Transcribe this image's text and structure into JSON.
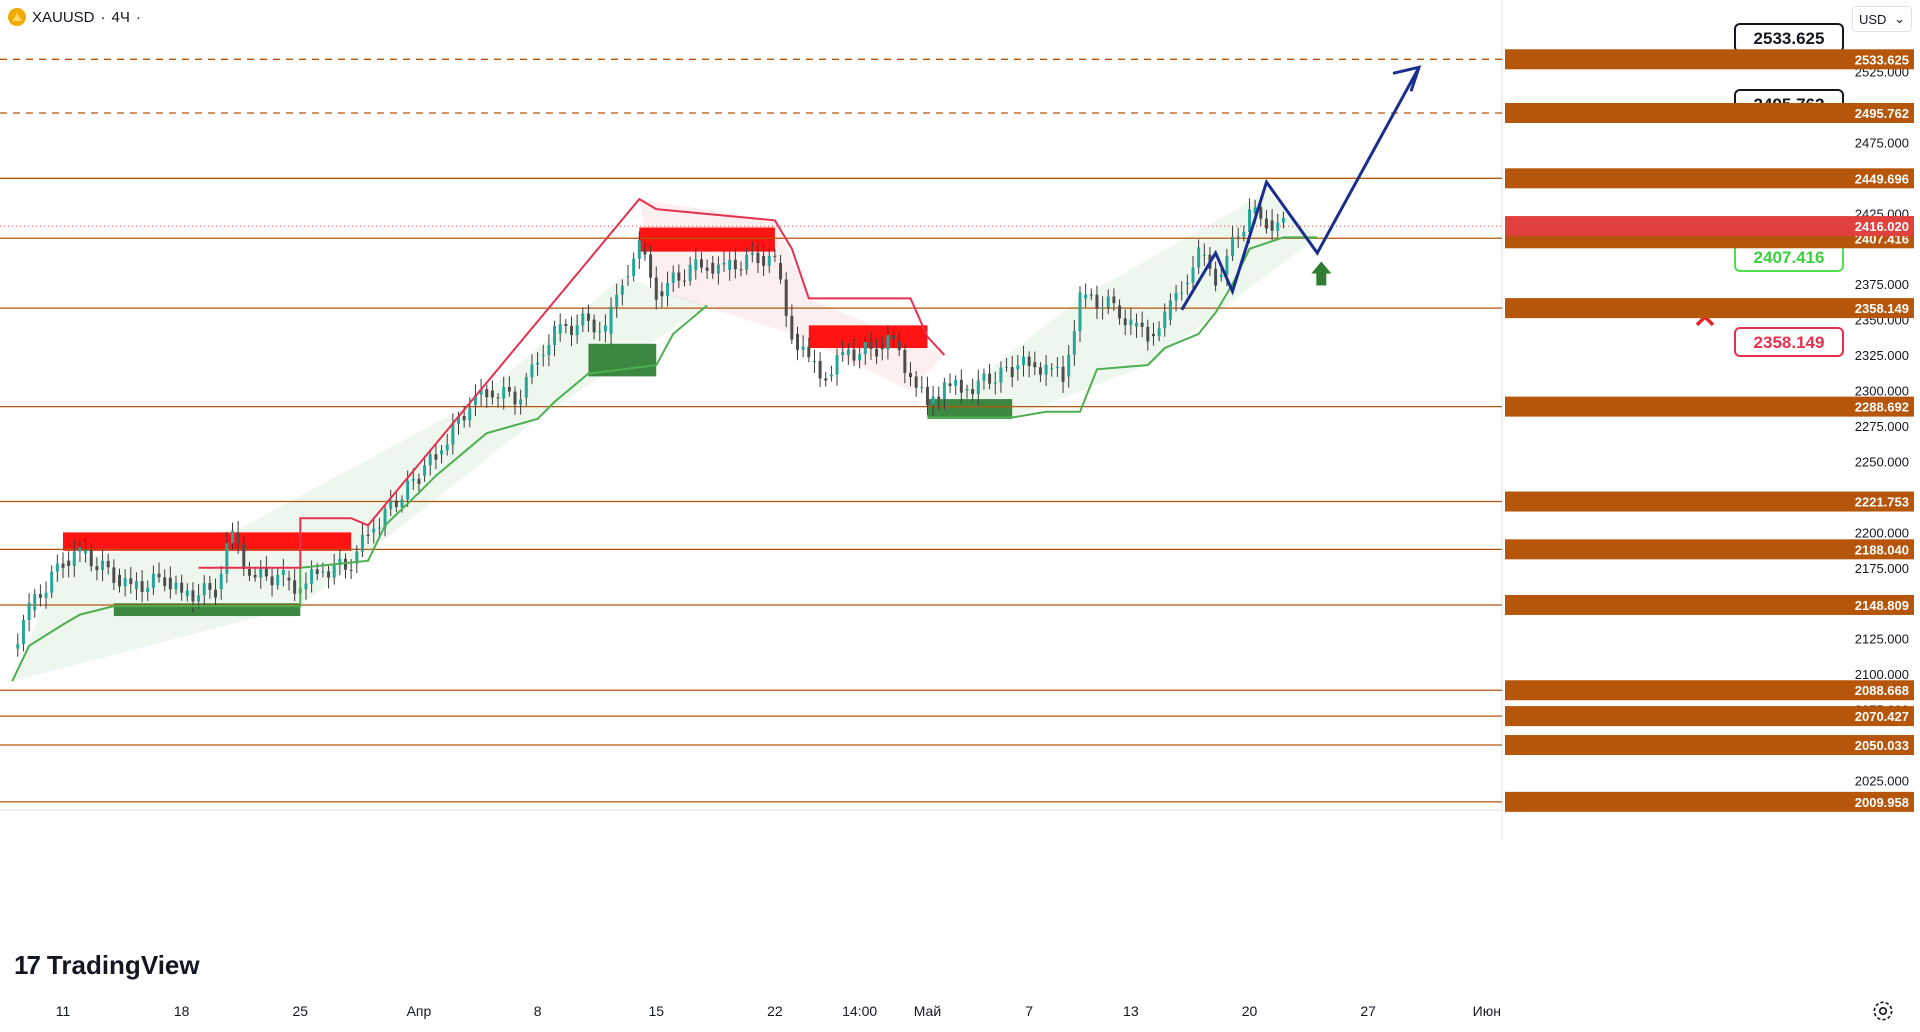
{
  "header": {
    "symbol": "XAUUSD",
    "interval": "4Ч",
    "dot": "·"
  },
  "currency": {
    "label": "USD",
    "chevron": "⌄"
  },
  "brand": {
    "name": "TradingView",
    "mark": "17"
  },
  "colors": {
    "level_line": "#b5560b",
    "level_tag_bg": "#b5560b",
    "dashed_line": "#b5560b",
    "price_tag_bg": "#e0403e",
    "green_line": "#4caf50",
    "red_line": "#e4314f",
    "path_line": "#1a2e8e",
    "arrow_green": "#2e7d32",
    "cross_red": "#e8202a",
    "demand_box": "#2e7d32",
    "supply_box": "#ff0000"
  },
  "chart_data": {
    "type": "candlestick",
    "title": "XAUUSD · 4Ч",
    "ylim": [
      2000,
      2540
    ],
    "y_ticks": [
      "2525.000",
      "2475.000",
      "2425.000",
      "2375.000",
      "2350.000",
      "2325.000",
      "2300.000",
      "2275.000",
      "2250.000",
      "2225.000",
      "2200.000",
      "2175.000",
      "2150.000",
      "2125.000",
      "2100.000",
      "2075.000",
      "2050.000",
      "2025.000"
    ],
    "x_ticks": [
      "11",
      "18",
      "25",
      "Апр",
      "8",
      "15",
      "22",
      "14:00",
      "Май",
      "7",
      "13",
      "20",
      "27",
      "Июн"
    ],
    "levels": [
      {
        "value": 2533.625,
        "label": "2533.625",
        "style": "dashed"
      },
      {
        "value": 2495.762,
        "label": "2495.762",
        "style": "dashed"
      },
      {
        "value": 2449.696,
        "label": "2449.696",
        "style": "solid"
      },
      {
        "value": 2407.416,
        "label": "2407.416",
        "style": "solid"
      },
      {
        "value": 2358.149,
        "label": "2358.149",
        "style": "solid"
      },
      {
        "value": 2288.692,
        "label": "2288.692",
        "style": "solid"
      },
      {
        "value": 2221.753,
        "label": "2221.753",
        "style": "solid"
      },
      {
        "value": 2188.04,
        "label": "2188.040",
        "style": "solid"
      },
      {
        "value": 2148.809,
        "label": "2148.809",
        "style": "solid"
      },
      {
        "value": 2088.668,
        "label": "2088.668",
        "style": "solid"
      },
      {
        "value": 2070.427,
        "label": "2070.427",
        "style": "solid"
      },
      {
        "value": 2050.033,
        "label": "2050.033",
        "style": "solid"
      },
      {
        "value": 2009.958,
        "label": "2009.958",
        "style": "solid"
      }
    ],
    "current_price": {
      "value": 2416.02,
      "label": "2416.020"
    },
    "targets": [
      {
        "label": "2533.625",
        "kind": "target"
      },
      {
        "label": "2495.762",
        "kind": "target"
      },
      {
        "label": "2407.416",
        "kind": "entry"
      },
      {
        "label": "2358.149",
        "kind": "stop"
      }
    ],
    "projected_path": [
      {
        "date": "May 16",
        "price": 2357
      },
      {
        "date": "May 18",
        "price": 2397
      },
      {
        "date": "May 19",
        "price": 2370
      },
      {
        "date": "May 21",
        "price": 2447
      },
      {
        "date": "May 24",
        "price": 2397
      },
      {
        "date": "May 30",
        "price": 2528
      }
    ],
    "close_series": [
      {
        "date": "Mar 8",
        "close": 2118
      },
      {
        "date": "Mar 9",
        "close": 2145
      },
      {
        "date": "Mar 11",
        "close": 2180
      },
      {
        "date": "Mar 12",
        "close": 2185
      },
      {
        "date": "Mar 14",
        "close": 2170
      },
      {
        "date": "Mar 15",
        "close": 2160
      },
      {
        "date": "Mar 17",
        "close": 2168
      },
      {
        "date": "Mar 18",
        "close": 2155
      },
      {
        "date": "Mar 20",
        "close": 2160
      },
      {
        "date": "Mar 21",
        "close": 2200
      },
      {
        "date": "Mar 22",
        "close": 2170
      },
      {
        "date": "Mar 24",
        "close": 2168
      },
      {
        "date": "Mar 25",
        "close": 2160
      },
      {
        "date": "Mar 26",
        "close": 2172
      },
      {
        "date": "Mar 28",
        "close": 2178
      },
      {
        "date": "Mar 29",
        "close": 2200
      },
      {
        "date": "Apr 1",
        "close": 2240
      },
      {
        "date": "Apr 2",
        "close": 2255
      },
      {
        "date": "Apr 4",
        "close": 2290
      },
      {
        "date": "Apr 5",
        "close": 2300
      },
      {
        "date": "Apr 7",
        "close": 2295
      },
      {
        "date": "Apr 8",
        "close": 2325
      },
      {
        "date": "Apr 9",
        "close": 2340
      },
      {
        "date": "Apr 11",
        "close": 2350
      },
      {
        "date": "Apr 12",
        "close": 2340
      },
      {
        "date": "Apr 13",
        "close": 2380
      },
      {
        "date": "Apr 14",
        "close": 2400
      },
      {
        "date": "Apr 15",
        "close": 2370
      },
      {
        "date": "Apr 17",
        "close": 2385
      },
      {
        "date": "Apr 18",
        "close": 2390
      },
      {
        "date": "Apr 19",
        "close": 2385
      },
      {
        "date": "Apr 21",
        "close": 2395
      },
      {
        "date": "Apr 22",
        "close": 2390
      },
      {
        "date": "Apr 23",
        "close": 2340
      },
      {
        "date": "Apr 24",
        "close": 2320
      },
      {
        "date": "Apr 25",
        "close": 2310
      },
      {
        "date": "Apr 26",
        "close": 2325
      },
      {
        "date": "Apr 28",
        "close": 2330
      },
      {
        "date": "Apr 29",
        "close": 2335
      },
      {
        "date": "Apr 30",
        "close": 2310
      },
      {
        "date": "May 1",
        "close": 2290
      },
      {
        "date": "May 2",
        "close": 2305
      },
      {
        "date": "May 3",
        "close": 2300
      },
      {
        "date": "May 6",
        "close": 2315
      },
      {
        "date": "May 7",
        "close": 2320
      },
      {
        "date": "May 8",
        "close": 2315
      },
      {
        "date": "May 9",
        "close": 2310
      },
      {
        "date": "May 10",
        "close": 2365
      },
      {
        "date": "May 12",
        "close": 2360
      },
      {
        "date": "May 13",
        "close": 2345
      },
      {
        "date": "May 14",
        "close": 2340
      },
      {
        "date": "May 15",
        "close": 2350
      },
      {
        "date": "May 16",
        "close": 2375
      },
      {
        "date": "May 17",
        "close": 2395
      },
      {
        "date": "May 18",
        "close": 2380
      },
      {
        "date": "May 20",
        "close": 2425
      },
      {
        "date": "May 21",
        "close": 2420
      },
      {
        "date": "May 22",
        "close": 2416
      }
    ]
  }
}
